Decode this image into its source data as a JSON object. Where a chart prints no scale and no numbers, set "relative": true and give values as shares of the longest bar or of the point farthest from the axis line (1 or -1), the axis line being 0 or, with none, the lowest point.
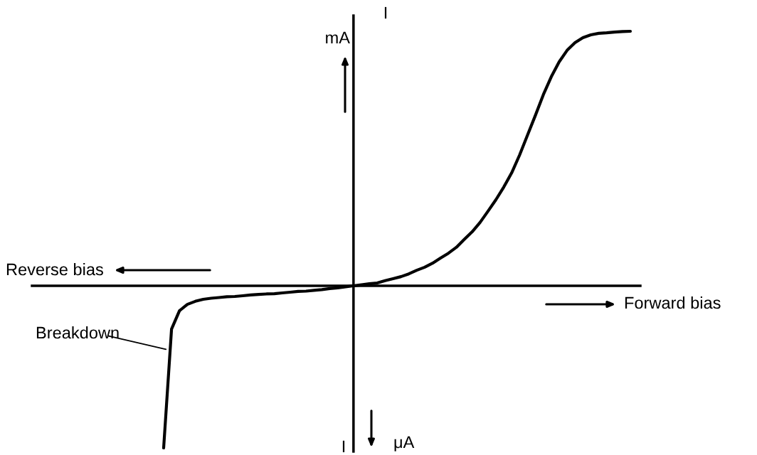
{
  "chart_data": {
    "type": "line",
    "relative": true,
    "color": "#000000",
    "line_style": "solid",
    "marker": "none",
    "categories": [
      null,
      null,
      null,
      null,
      null,
      null,
      null,
      null,
      null,
      null,
      null,
      null,
      null,
      null,
      null,
      null,
      null,
      null,
      null,
      null,
      null,
      null,
      null,
      null,
      null,
      null,
      null,
      null,
      null,
      null,
      null,
      null,
      null,
      null,
      null,
      null,
      null,
      null,
      null,
      null,
      null,
      null,
      null,
      null,
      null,
      null,
      null,
      null,
      null,
      null,
      null,
      null,
      null,
      null,
      null,
      null,
      null,
      null,
      null,
      null
    ],
    "values": [
      -0.637,
      -0.17,
      -0.098,
      -0.073,
      -0.061,
      -0.053,
      -0.049,
      -0.046,
      -0.043,
      -0.042,
      -0.039,
      -0.036,
      -0.034,
      -0.032,
      -0.031,
      -0.028,
      -0.025,
      -0.022,
      -0.021,
      -0.018,
      -0.015,
      -0.011,
      -0.008,
      -0.004,
      0,
      0.004,
      0.008,
      0.011,
      0.02,
      0.028,
      0.036,
      0.047,
      0.061,
      0.073,
      0.089,
      0.109,
      0.128,
      0.151,
      0.182,
      0.212,
      0.249,
      0.293,
      0.338,
      0.388,
      0.444,
      0.514,
      0.592,
      0.67,
      0.751,
      0.821,
      0.88,
      0.925,
      0.955,
      0.975,
      0.986,
      0.992,
      0.994,
      0.997,
      0.999,
      1.0
    ],
    "annotations": [
      "I",
      "mA",
      "I",
      "μA",
      "Reverse bias",
      "Forward bias",
      "Breakdown"
    ]
  }
}
